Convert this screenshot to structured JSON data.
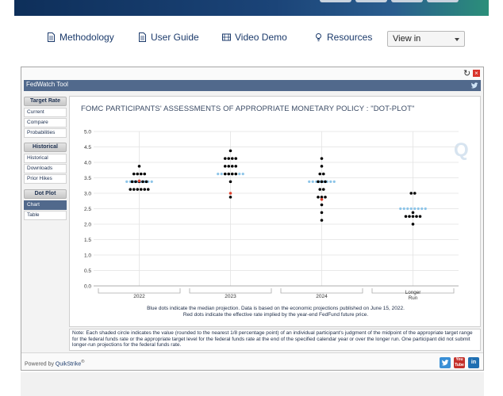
{
  "nav": {
    "links": [
      {
        "label": "Methodology",
        "icon": "document-icon"
      },
      {
        "label": "User Guide",
        "icon": "document-icon"
      },
      {
        "label": "Video Demo",
        "icon": "film-icon"
      },
      {
        "label": "Resources",
        "icon": "lightbulb-icon"
      }
    ],
    "view_select": "View in"
  },
  "tool": {
    "title": "FedWatch Tool",
    "sidebar": {
      "sections": [
        {
          "header": "Target Rate",
          "items": [
            "Current",
            "Compare",
            "Probabilities"
          ]
        },
        {
          "header": "Historical",
          "items": [
            "Historical",
            "Downloads",
            "Prior Hikes"
          ]
        },
        {
          "header": "Dot Plot",
          "items": [
            "Chart",
            "Table"
          ]
        }
      ],
      "active_item": "Chart"
    },
    "powered_by_prefix": "Powered by",
    "powered_by_brand": "QuikStrike",
    "registered_mark": "®",
    "social": [
      {
        "name": "twitter-icon",
        "color": "#3a8fd6"
      },
      {
        "name": "youtube-icon",
        "color": "#c4302b",
        "text": "You Tube"
      },
      {
        "name": "linkedin-icon",
        "color": "#1f6fb2",
        "text": "in"
      }
    ]
  },
  "chart_data": {
    "type": "scatter",
    "title": "FOMC PARTICIPANTS' ASSESSMENTS OF APPROPRIATE MONETARY POLICY : \"DOT-PLOT\"",
    "categories": [
      "2022",
      "2023",
      "2024",
      "Longer Run"
    ],
    "ylim": [
      0,
      5
    ],
    "yticks": [
      "0.0",
      "0.5",
      "1.0",
      "1.5",
      "2.0",
      "2.5",
      "3.0",
      "3.5",
      "4.0",
      "4.5",
      "5.0"
    ],
    "grid": true,
    "colors": {
      "participant": "#000000",
      "median": "#8cc4e8",
      "effective": "#e0442f"
    },
    "series": [
      {
        "name": "participant",
        "points": [
          {
            "category": "2022",
            "values": [
              3.875,
              3.625,
              3.625,
              3.625,
              3.625,
              3.375,
              3.375,
              3.375,
              3.375,
              3.375,
              3.125,
              3.125,
              3.125,
              3.125,
              3.125,
              3.125
            ]
          },
          {
            "category": "2023",
            "values": [
              4.375,
              4.125,
              4.125,
              4.125,
              4.125,
              3.875,
              3.875,
              3.875,
              3.875,
              3.625,
              3.625,
              3.625,
              3.625,
              3.375,
              2.875
            ]
          },
          {
            "category": "2024",
            "values": [
              4.125,
              3.875,
              3.625,
              3.625,
              3.375,
              3.375,
              3.375,
              3.125,
              3.125,
              2.875,
              2.875,
              2.875,
              2.625,
              2.125,
              2.375
            ]
          },
          {
            "category": "Longer Run",
            "values": [
              3.0,
              3.0,
              2.375,
              2.25,
              2.25,
              2.25,
              2.25,
              2.25,
              2.0
            ]
          }
        ]
      },
      {
        "name": "median",
        "values": [
          3.375,
          3.625,
          3.375,
          2.5
        ]
      },
      {
        "name": "effective",
        "values": [
          3.4,
          3.0,
          2.8
        ]
      }
    ],
    "caption_lines": [
      "Blue dots indicate the median projection. Data is based on the economic projections published on June 15, 2022.",
      "Red dots indicate the effective rate implied by the year-end FedFund future price."
    ],
    "note": "Note: Each shaded circle indicates the value (rounded to the nearest 1/8 percentage point) of an individual participant's judgment of the midpoint of the appropriate target range for the federal funds rate or the appropriate target level for the federal funds rate at the end of the specified calendar year or over the longer run. One participant did not submit longer-run projections for the federal funds rate.",
    "watermark": "Q"
  }
}
